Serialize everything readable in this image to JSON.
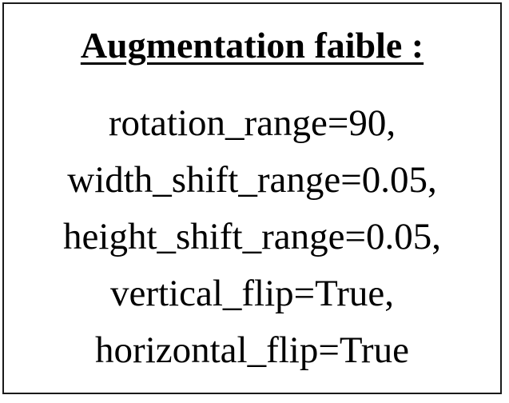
{
  "card": {
    "title": "Augmentation faible :",
    "params": [
      "rotation_range=90,",
      "width_shift_range=0.05,",
      "height_shift_range=0.05,",
      "vertical_flip=True,",
      "horizontal_flip=True"
    ]
  }
}
